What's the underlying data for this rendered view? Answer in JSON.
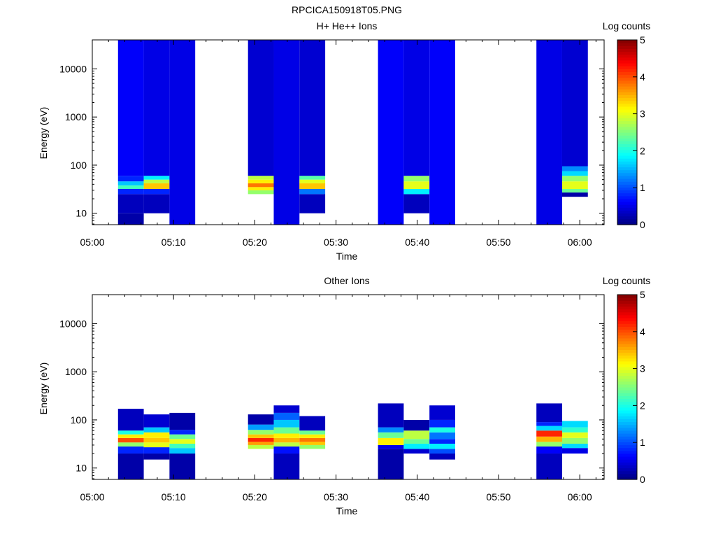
{
  "file_title": "RPCICA150918T05.PNG",
  "colors": {
    "background": "#ffffff",
    "axis": "#000000",
    "colormap": "jet"
  },
  "chart_data": [
    {
      "type": "heatmap",
      "title": "H+ He++ Ions",
      "xlabel": "Time",
      "ylabel": "Energy (eV)",
      "colorbar_label": "Log counts",
      "xlim": [
        "05:00",
        "06:03"
      ],
      "ylim": [
        5.8,
        40000
      ],
      "yscale": "log",
      "clim": [
        0,
        5
      ],
      "xticks": [
        "05:00",
        "05:10",
        "05:20",
        "05:30",
        "05:40",
        "05:50",
        "06:00"
      ],
      "yticks": [
        "10",
        "100",
        "1000",
        "10000"
      ],
      "cticks": [
        "0",
        "1",
        "2",
        "3",
        "4",
        "5"
      ],
      "columns": [
        {
          "start": "05:03:10",
          "end": "05:06:20",
          "bands": [
            [
              5.8,
              10,
              0.2
            ],
            [
              10,
              25,
              0.3
            ],
            [
              25,
              32,
              0.8
            ],
            [
              32,
              38,
              2.2
            ],
            [
              38,
              46,
              1.6
            ],
            [
              46,
              60,
              0.8
            ],
            [
              60,
              40000,
              0.6
            ]
          ]
        },
        {
          "start": "05:06:20",
          "end": "05:09:30",
          "bands": [
            [
              10,
              25,
              0.3
            ],
            [
              25,
              32,
              0.8
            ],
            [
              32,
              42,
              3.4
            ],
            [
              42,
              50,
              2.8
            ],
            [
              50,
              60,
              1.8
            ],
            [
              60,
              40000,
              0.5
            ]
          ]
        },
        {
          "start": "05:09:30",
          "end": "05:12:40",
          "bands": [
            [
              5.8,
              40000,
              0.5
            ]
          ]
        },
        {
          "start": "05:19:10",
          "end": "05:22:20",
          "bands": [
            [
              25,
              30,
              2.6
            ],
            [
              30,
              35,
              3.2
            ],
            [
              35,
              42,
              3.8
            ],
            [
              42,
              50,
              3.2
            ],
            [
              50,
              60,
              2.8
            ],
            [
              60,
              40000,
              0.4
            ]
          ]
        },
        {
          "start": "05:22:20",
          "end": "05:25:30",
          "bands": [
            [
              5.8,
              40000,
              0.5
            ]
          ]
        },
        {
          "start": "05:25:30",
          "end": "05:28:40",
          "bands": [
            [
              10,
              25,
              0.3
            ],
            [
              25,
              32,
              1.2
            ],
            [
              32,
              42,
              3.4
            ],
            [
              42,
              50,
              3.0
            ],
            [
              50,
              60,
              2.3
            ],
            [
              60,
              40000,
              0.4
            ]
          ]
        },
        {
          "start": "05:35:10",
          "end": "05:38:20",
          "bands": [
            [
              5.8,
              40000,
              0.6
            ]
          ]
        },
        {
          "start": "05:38:20",
          "end": "05:41:30",
          "bands": [
            [
              10,
              25,
              0.3
            ],
            [
              25,
              32,
              1.8
            ],
            [
              32,
              46,
              3.0
            ],
            [
              46,
              60,
              2.6
            ],
            [
              60,
              40000,
              0.5
            ]
          ]
        },
        {
          "start": "05:41:30",
          "end": "05:44:40",
          "bands": [
            [
              5.8,
              40000,
              0.6
            ]
          ]
        },
        {
          "start": "05:54:40",
          "end": "05:57:50",
          "bands": [
            [
              5.8,
              40000,
              0.5
            ]
          ]
        },
        {
          "start": "05:57:50",
          "end": "06:01:00",
          "bands": [
            [
              22,
              27,
              0.2
            ],
            [
              27,
              32,
              2.4
            ],
            [
              32,
              46,
              3.0
            ],
            [
              46,
              60,
              2.6
            ],
            [
              60,
              75,
              1.7
            ],
            [
              75,
              95,
              1.3
            ],
            [
              95,
              40000,
              0.4
            ]
          ]
        }
      ]
    },
    {
      "type": "heatmap",
      "title": "Other Ions",
      "xlabel": "Time",
      "ylabel": "Energy (eV)",
      "colorbar_label": "Log counts",
      "xlim": [
        "05:00",
        "06:03"
      ],
      "ylim": [
        5.8,
        40000
      ],
      "yscale": "log",
      "clim": [
        0,
        5
      ],
      "xticks": [
        "05:00",
        "05:10",
        "05:20",
        "05:30",
        "05:40",
        "05:50",
        "06:00"
      ],
      "yticks": [
        "10",
        "100",
        "1000",
        "10000"
      ],
      "cticks": [
        "0",
        "1",
        "2",
        "3",
        "4",
        "5"
      ],
      "columns": [
        {
          "start": "05:03:10",
          "end": "05:06:20",
          "bands": [
            [
              5.8,
              20,
              0.2
            ],
            [
              20,
              28,
              0.8
            ],
            [
              28,
              34,
              2.6
            ],
            [
              34,
              42,
              4.0
            ],
            [
              42,
              50,
              3.2
            ],
            [
              50,
              60,
              2.0
            ],
            [
              60,
              170,
              0.3
            ]
          ]
        },
        {
          "start": "05:06:20",
          "end": "05:09:30",
          "bands": [
            [
              15,
              20,
              0.2
            ],
            [
              20,
              27,
              0.8
            ],
            [
              27,
              34,
              3.0
            ],
            [
              34,
              42,
              3.4
            ],
            [
              42,
              55,
              3.2
            ],
            [
              55,
              70,
              1.6
            ],
            [
              70,
              130,
              0.4
            ]
          ]
        },
        {
          "start": "05:09:30",
          "end": "05:12:40",
          "bands": [
            [
              5.8,
              20,
              0.2
            ],
            [
              20,
              26,
              1.6
            ],
            [
              26,
              32,
              2.2
            ],
            [
              32,
              40,
              3.0
            ],
            [
              40,
              50,
              2.4
            ],
            [
              50,
              62,
              0.8
            ],
            [
              62,
              140,
              0.2
            ]
          ]
        },
        {
          "start": "05:19:10",
          "end": "05:22:20",
          "bands": [
            [
              25,
              30,
              2.8
            ],
            [
              30,
              35,
              3.6
            ],
            [
              35,
              42,
              4.2
            ],
            [
              42,
              50,
              3.4
            ],
            [
              50,
              62,
              2.6
            ],
            [
              62,
              80,
              1.4
            ],
            [
              80,
              130,
              0.2
            ]
          ]
        },
        {
          "start": "05:22:20",
          "end": "05:25:30",
          "bands": [
            [
              5.8,
              20,
              0.3
            ],
            [
              20,
              28,
              0.7
            ],
            [
              28,
              34,
              2.8
            ],
            [
              34,
              42,
              3.5
            ],
            [
              42,
              52,
              3.2
            ],
            [
              52,
              70,
              2.4
            ],
            [
              70,
              100,
              1.6
            ],
            [
              100,
              140,
              1.1
            ],
            [
              140,
              200,
              0.4
            ]
          ]
        },
        {
          "start": "05:25:30",
          "end": "05:28:40",
          "bands": [
            [
              25,
              30,
              2.6
            ],
            [
              30,
              35,
              3.4
            ],
            [
              35,
              42,
              3.8
            ],
            [
              42,
              50,
              3.2
            ],
            [
              50,
              60,
              2.4
            ],
            [
              60,
              120,
              0.3
            ]
          ]
        },
        {
          "start": "05:35:10",
          "end": "05:38:20",
          "bands": [
            [
              5.8,
              25,
              0.2
            ],
            [
              25,
              30,
              0.5
            ],
            [
              30,
              42,
              3.2
            ],
            [
              42,
              55,
              2.4
            ],
            [
              55,
              70,
              1.3
            ],
            [
              70,
              220,
              0.3
            ]
          ]
        },
        {
          "start": "05:38:20",
          "end": "05:41:30",
          "bands": [
            [
              20,
              25,
              0.4
            ],
            [
              25,
              32,
              1.8
            ],
            [
              32,
              40,
              2.4
            ],
            [
              40,
              60,
              2.8
            ],
            [
              60,
              100,
              0.2
            ]
          ]
        },
        {
          "start": "05:41:30",
          "end": "05:44:40",
          "bands": [
            [
              15,
              20,
              0.3
            ],
            [
              20,
              25,
              1.0
            ],
            [
              25,
              32,
              1.8
            ],
            [
              32,
              40,
              0.8
            ],
            [
              40,
              55,
              1.2
            ],
            [
              55,
              70,
              2.0
            ],
            [
              70,
              100,
              0.8
            ],
            [
              100,
              200,
              0.4
            ]
          ]
        },
        {
          "start": "05:54:40",
          "end": "05:57:50",
          "bands": [
            [
              5.8,
              20,
              0.3
            ],
            [
              20,
              28,
              0.6
            ],
            [
              28,
              35,
              2.6
            ],
            [
              35,
              45,
              3.5
            ],
            [
              45,
              60,
              4.2
            ],
            [
              60,
              75,
              1.7
            ],
            [
              75,
              90,
              0.8
            ],
            [
              90,
              220,
              0.3
            ]
          ]
        },
        {
          "start": "05:57:50",
          "end": "06:01:00",
          "bands": [
            [
              20,
              26,
              0.5
            ],
            [
              26,
              32,
              1.7
            ],
            [
              32,
              42,
              2.6
            ],
            [
              42,
              55,
              3.0
            ],
            [
              55,
              70,
              2.1
            ],
            [
              70,
              95,
              1.7
            ]
          ]
        }
      ]
    }
  ]
}
